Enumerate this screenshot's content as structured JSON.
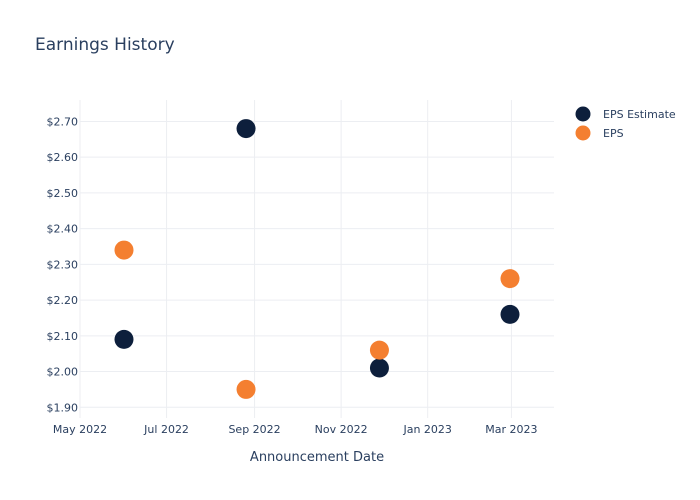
{
  "chart_data": {
    "type": "scatter",
    "title": "Earnings History",
    "xlabel": "Announcement Date",
    "ylabel": "",
    "x_ticks": [
      "May 2022",
      "Jul 2022",
      "Sep 2022",
      "Nov 2022",
      "Jan 2023",
      "Mar 2023"
    ],
    "x_tick_dates": [
      "2022-05-01",
      "2022-07-01",
      "2022-09-01",
      "2022-11-01",
      "2023-01-01",
      "2023-03-01"
    ],
    "xlim": [
      "2022-05-01",
      "2023-03-31"
    ],
    "y_ticks": [
      "$1.90",
      "$2.00",
      "$2.10",
      "$2.20",
      "$2.30",
      "$2.40",
      "$2.50",
      "$2.60",
      "$2.70"
    ],
    "ylim": [
      1.87,
      2.76
    ],
    "grid": true,
    "legend_position": "top-right",
    "series": [
      {
        "name": "EPS Estimate",
        "color": "#0d1f3c",
        "points": [
          {
            "x": "2022-06-01",
            "y": 2.09
          },
          {
            "x": "2022-08-26",
            "y": 2.68
          },
          {
            "x": "2022-11-28",
            "y": 2.01
          },
          {
            "x": "2023-02-28",
            "y": 2.16
          }
        ]
      },
      {
        "name": "EPS",
        "color": "#f47f30",
        "points": [
          {
            "x": "2022-06-01",
            "y": 2.34
          },
          {
            "x": "2022-08-26",
            "y": 1.95
          },
          {
            "x": "2022-11-28",
            "y": 2.06
          },
          {
            "x": "2023-02-28",
            "y": 2.26
          }
        ]
      }
    ]
  }
}
